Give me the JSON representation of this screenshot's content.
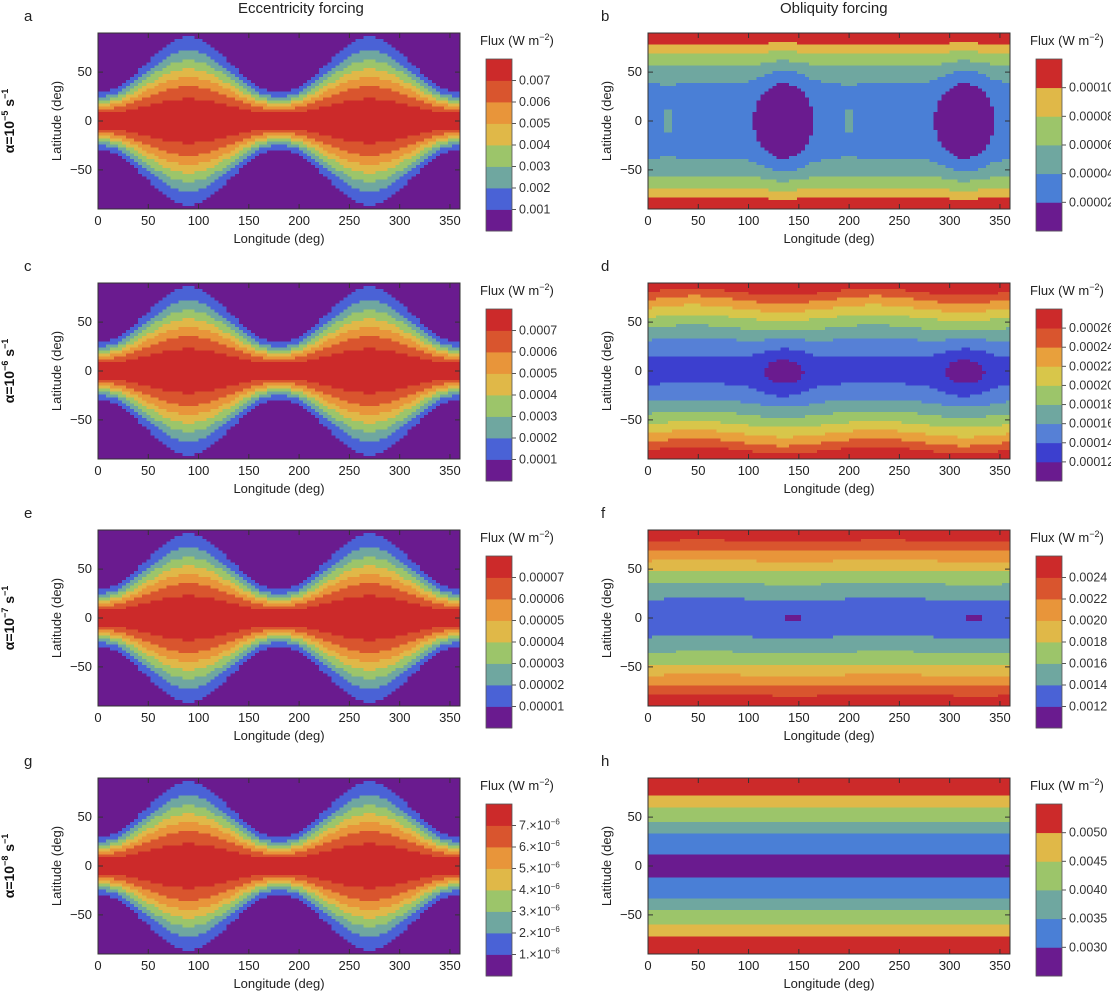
{
  "figure": {
    "col_titles": [
      "Eccentricity forcing",
      "Obliquity forcing"
    ],
    "row_labels": [
      {
        "alpha": "α=10",
        "exp": "−5",
        "unit": " s",
        "uexp": "−1"
      },
      {
        "alpha": "α=10",
        "exp": "−6",
        "unit": " s",
        "uexp": "−1"
      },
      {
        "alpha": "α=10",
        "exp": "−7",
        "unit": " s",
        "uexp": "−1"
      },
      {
        "alpha": "α=10",
        "exp": "−8",
        "unit": " s",
        "uexp": "−1"
      }
    ],
    "colors": {
      "palette8": [
        "#6a1b8f",
        "#3e4fd1",
        "#4a7fd6",
        "#6fa7a0",
        "#9cc56a",
        "#e0b848",
        "#e8953a",
        "#d9552e",
        "#cc2a2a"
      ],
      "axis": "#333333",
      "contour_line": "#3a3a3a"
    },
    "colorbar_title": "Flux (W m",
    "colorbar_title_exp": "−2",
    "colorbar_title_close": ")"
  },
  "chart_data": [
    {
      "id": "a",
      "type": "heatmap",
      "mode": "ecc",
      "title": "",
      "xlabel": "Longitude (deg)",
      "ylabel": "Latitude (deg)",
      "xlim": [
        0,
        360
      ],
      "ylim": [
        -90,
        90
      ],
      "xticks": [
        "0",
        "50",
        "100",
        "150",
        "200",
        "250",
        "300",
        "350"
      ],
      "yticks": [
        "50",
        "0",
        "−50"
      ],
      "levels": [
        0.001,
        0.002,
        0.003,
        0.004,
        0.005,
        0.006,
        0.007
      ],
      "colorbar_ticks": [
        "0.007",
        "0.006",
        "0.005",
        "0.004",
        "0.003",
        "0.002",
        "0.001"
      ],
      "num_bins": 8
    },
    {
      "id": "b",
      "type": "heatmap",
      "mode": "obl1",
      "title": "",
      "xlabel": "Longitude (deg)",
      "ylabel": "Latitude (deg)",
      "xlim": [
        0,
        360
      ],
      "ylim": [
        -90,
        90
      ],
      "xticks": [
        "0",
        "50",
        "100",
        "150",
        "200",
        "250",
        "300",
        "350"
      ],
      "yticks": [
        "50",
        "0",
        "−50"
      ],
      "levels": [
        2e-05,
        4e-05,
        6e-05,
        8e-05,
        0.0001
      ],
      "colorbar_ticks": [
        "0.00010",
        "0.00008",
        "0.00006",
        "0.00004",
        "0.00002"
      ],
      "num_bins": 6
    },
    {
      "id": "c",
      "type": "heatmap",
      "mode": "ecc",
      "title": "",
      "xlabel": "Longitude (deg)",
      "ylabel": "Latitude (deg)",
      "xlim": [
        0,
        360
      ],
      "ylim": [
        -90,
        90
      ],
      "xticks": [
        "0",
        "50",
        "100",
        "150",
        "200",
        "250",
        "300",
        "350"
      ],
      "yticks": [
        "50",
        "0",
        "−50"
      ],
      "levels": [
        0.0001,
        0.0002,
        0.0003,
        0.0004,
        0.0005,
        0.0006,
        0.0007
      ],
      "colorbar_ticks": [
        "0.0007",
        "0.0006",
        "0.0005",
        "0.0004",
        "0.0003",
        "0.0002",
        "0.0001"
      ],
      "num_bins": 8
    },
    {
      "id": "d",
      "type": "heatmap",
      "mode": "obl2",
      "title": "",
      "xlabel": "Longitude (deg)",
      "ylabel": "Latitude (deg)",
      "xlim": [
        0,
        360
      ],
      "ylim": [
        -90,
        90
      ],
      "xticks": [
        "0",
        "50",
        "100",
        "150",
        "200",
        "250",
        "300",
        "350"
      ],
      "yticks": [
        "50",
        "0",
        "−50"
      ],
      "levels": [
        0.00012,
        0.00014,
        0.00016,
        0.00018,
        0.0002,
        0.00022,
        0.00024,
        0.00026
      ],
      "colorbar_ticks": [
        "0.00026",
        "0.00024",
        "0.00022",
        "0.00020",
        "0.00018",
        "0.00016",
        "0.00014",
        "0.00012"
      ],
      "num_bins": 9
    },
    {
      "id": "e",
      "type": "heatmap",
      "mode": "ecc",
      "title": "",
      "xlabel": "Longitude (deg)",
      "ylabel": "Latitude (deg)",
      "xlim": [
        0,
        360
      ],
      "ylim": [
        -90,
        90
      ],
      "xticks": [
        "0",
        "50",
        "100",
        "150",
        "200",
        "250",
        "300",
        "350"
      ],
      "yticks": [
        "50",
        "0",
        "−50"
      ],
      "levels": [
        1e-05,
        2e-05,
        3e-05,
        4e-05,
        5e-05,
        6e-05,
        7e-05
      ],
      "colorbar_ticks": [
        "0.00007",
        "0.00006",
        "0.00005",
        "0.00004",
        "0.00003",
        "0.00002",
        "0.00001"
      ],
      "num_bins": 8
    },
    {
      "id": "f",
      "type": "heatmap",
      "mode": "obl3",
      "title": "",
      "xlabel": "Longitude (deg)",
      "ylabel": "Latitude (deg)",
      "xlim": [
        0,
        360
      ],
      "ylim": [
        -90,
        90
      ],
      "xticks": [
        "0",
        "50",
        "100",
        "150",
        "200",
        "250",
        "300",
        "350"
      ],
      "yticks": [
        "50",
        "0",
        "−50"
      ],
      "levels": [
        0.0012,
        0.0014,
        0.0016,
        0.0018,
        0.002,
        0.0022,
        0.0024
      ],
      "colorbar_ticks": [
        "0.0024",
        "0.0022",
        "0.0020",
        "0.0018",
        "0.0016",
        "0.0014",
        "0.0012"
      ],
      "num_bins": 8
    },
    {
      "id": "g",
      "type": "heatmap",
      "mode": "ecc",
      "title": "",
      "xlabel": "Longitude (deg)",
      "ylabel": "Latitude (deg)",
      "xlim": [
        0,
        360
      ],
      "ylim": [
        -90,
        90
      ],
      "xticks": [
        "0",
        "50",
        "100",
        "150",
        "200",
        "250",
        "300",
        "350"
      ],
      "yticks": [
        "50",
        "0",
        "−50"
      ],
      "levels": [
        1e-06,
        2e-06,
        3e-06,
        4e-06,
        5e-06,
        6e-06,
        7e-06
      ],
      "colorbar_ticks": [
        "7.×10",
        "6.×10",
        "5.×10",
        "4.×10",
        "3.×10",
        "2.×10",
        "1.×10"
      ],
      "colorbar_tick_exp": "−6",
      "num_bins": 8
    },
    {
      "id": "h",
      "type": "heatmap",
      "mode": "obl4",
      "title": "",
      "xlabel": "Longitude (deg)",
      "ylabel": "Latitude (deg)",
      "xlim": [
        0,
        360
      ],
      "ylim": [
        -90,
        90
      ],
      "xticks": [
        "0",
        "50",
        "100",
        "150",
        "200",
        "250",
        "300",
        "350"
      ],
      "yticks": [
        "50",
        "0",
        "−50"
      ],
      "levels": [
        0.003,
        0.0035,
        0.004,
        0.0045,
        0.005
      ],
      "colorbar_ticks": [
        "0.0050",
        "0.0045",
        "0.0040",
        "0.0035",
        "0.0030"
      ],
      "num_bins": 6
    }
  ]
}
